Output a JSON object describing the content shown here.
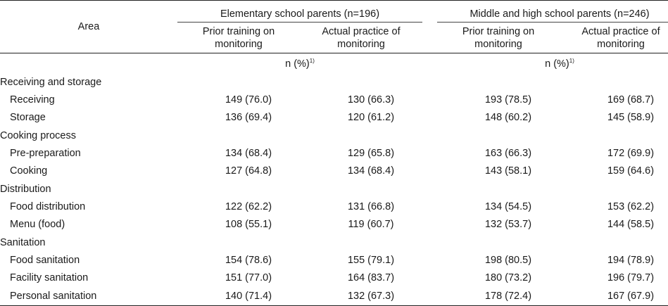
{
  "header": {
    "area_label": "Area",
    "group_elementary": "Elementary school parents  (n=196)",
    "group_middle_high": "Middle and high school parents (n=246)",
    "col_prior_line1": "Prior training on",
    "col_prior_line2": "monitoring",
    "col_actual_line1": "Actual practice of",
    "col_actual_line2": "monitoring",
    "unit_text": "n  (%)",
    "unit_note": "1)"
  },
  "sections": [
    {
      "title": "Receiving and storage",
      "rows": [
        {
          "label": "Receiving",
          "e_prior": "149 (76.0)",
          "e_actual": "130 (66.3)",
          "m_prior": "193 (78.5)",
          "m_actual": "169 (68.7)"
        },
        {
          "label": "Storage",
          "e_prior": "136 (69.4)",
          "e_actual": "120 (61.2)",
          "m_prior": "148 (60.2)",
          "m_actual": "145 (58.9)"
        }
      ]
    },
    {
      "title": "Cooking process",
      "rows": [
        {
          "label": "Pre-preparation",
          "e_prior": "134 (68.4)",
          "e_actual": "129 (65.8)",
          "m_prior": "163 (66.3)",
          "m_actual": "172 (69.9)"
        },
        {
          "label": "Cooking",
          "e_prior": "127 (64.8)",
          "e_actual": "134 (68.4)",
          "m_prior": "143 (58.1)",
          "m_actual": "159 (64.6)"
        }
      ]
    },
    {
      "title": "Distribution",
      "rows": [
        {
          "label": "Food distribution",
          "e_prior": "122 (62.2)",
          "e_actual": "131 (66.8)",
          "m_prior": "134 (54.5)",
          "m_actual": "153 (62.2)"
        },
        {
          "label": "Menu  (food)",
          "e_prior": "108 (55.1)",
          "e_actual": "119 (60.7)",
          "m_prior": "132 (53.7)",
          "m_actual": "144 (58.5)"
        }
      ]
    },
    {
      "title": "Sanitation",
      "rows": [
        {
          "label": "Food sanitation",
          "e_prior": "154 (78.6)",
          "e_actual": "155 (79.1)",
          "m_prior": "198 (80.5)",
          "m_actual": "194 (78.9)"
        },
        {
          "label": "Facility sanitation",
          "e_prior": "151 (77.0)",
          "e_actual": "164 (83.7)",
          "m_prior": "180 (73.2)",
          "m_actual": "196 (79.7)"
        },
        {
          "label": "Personal sanitation",
          "e_prior": "140 (71.4)",
          "e_actual": "132 (67.3)",
          "m_prior": "178 (72.4)",
          "m_actual": "167 (67.9)"
        }
      ]
    }
  ]
}
